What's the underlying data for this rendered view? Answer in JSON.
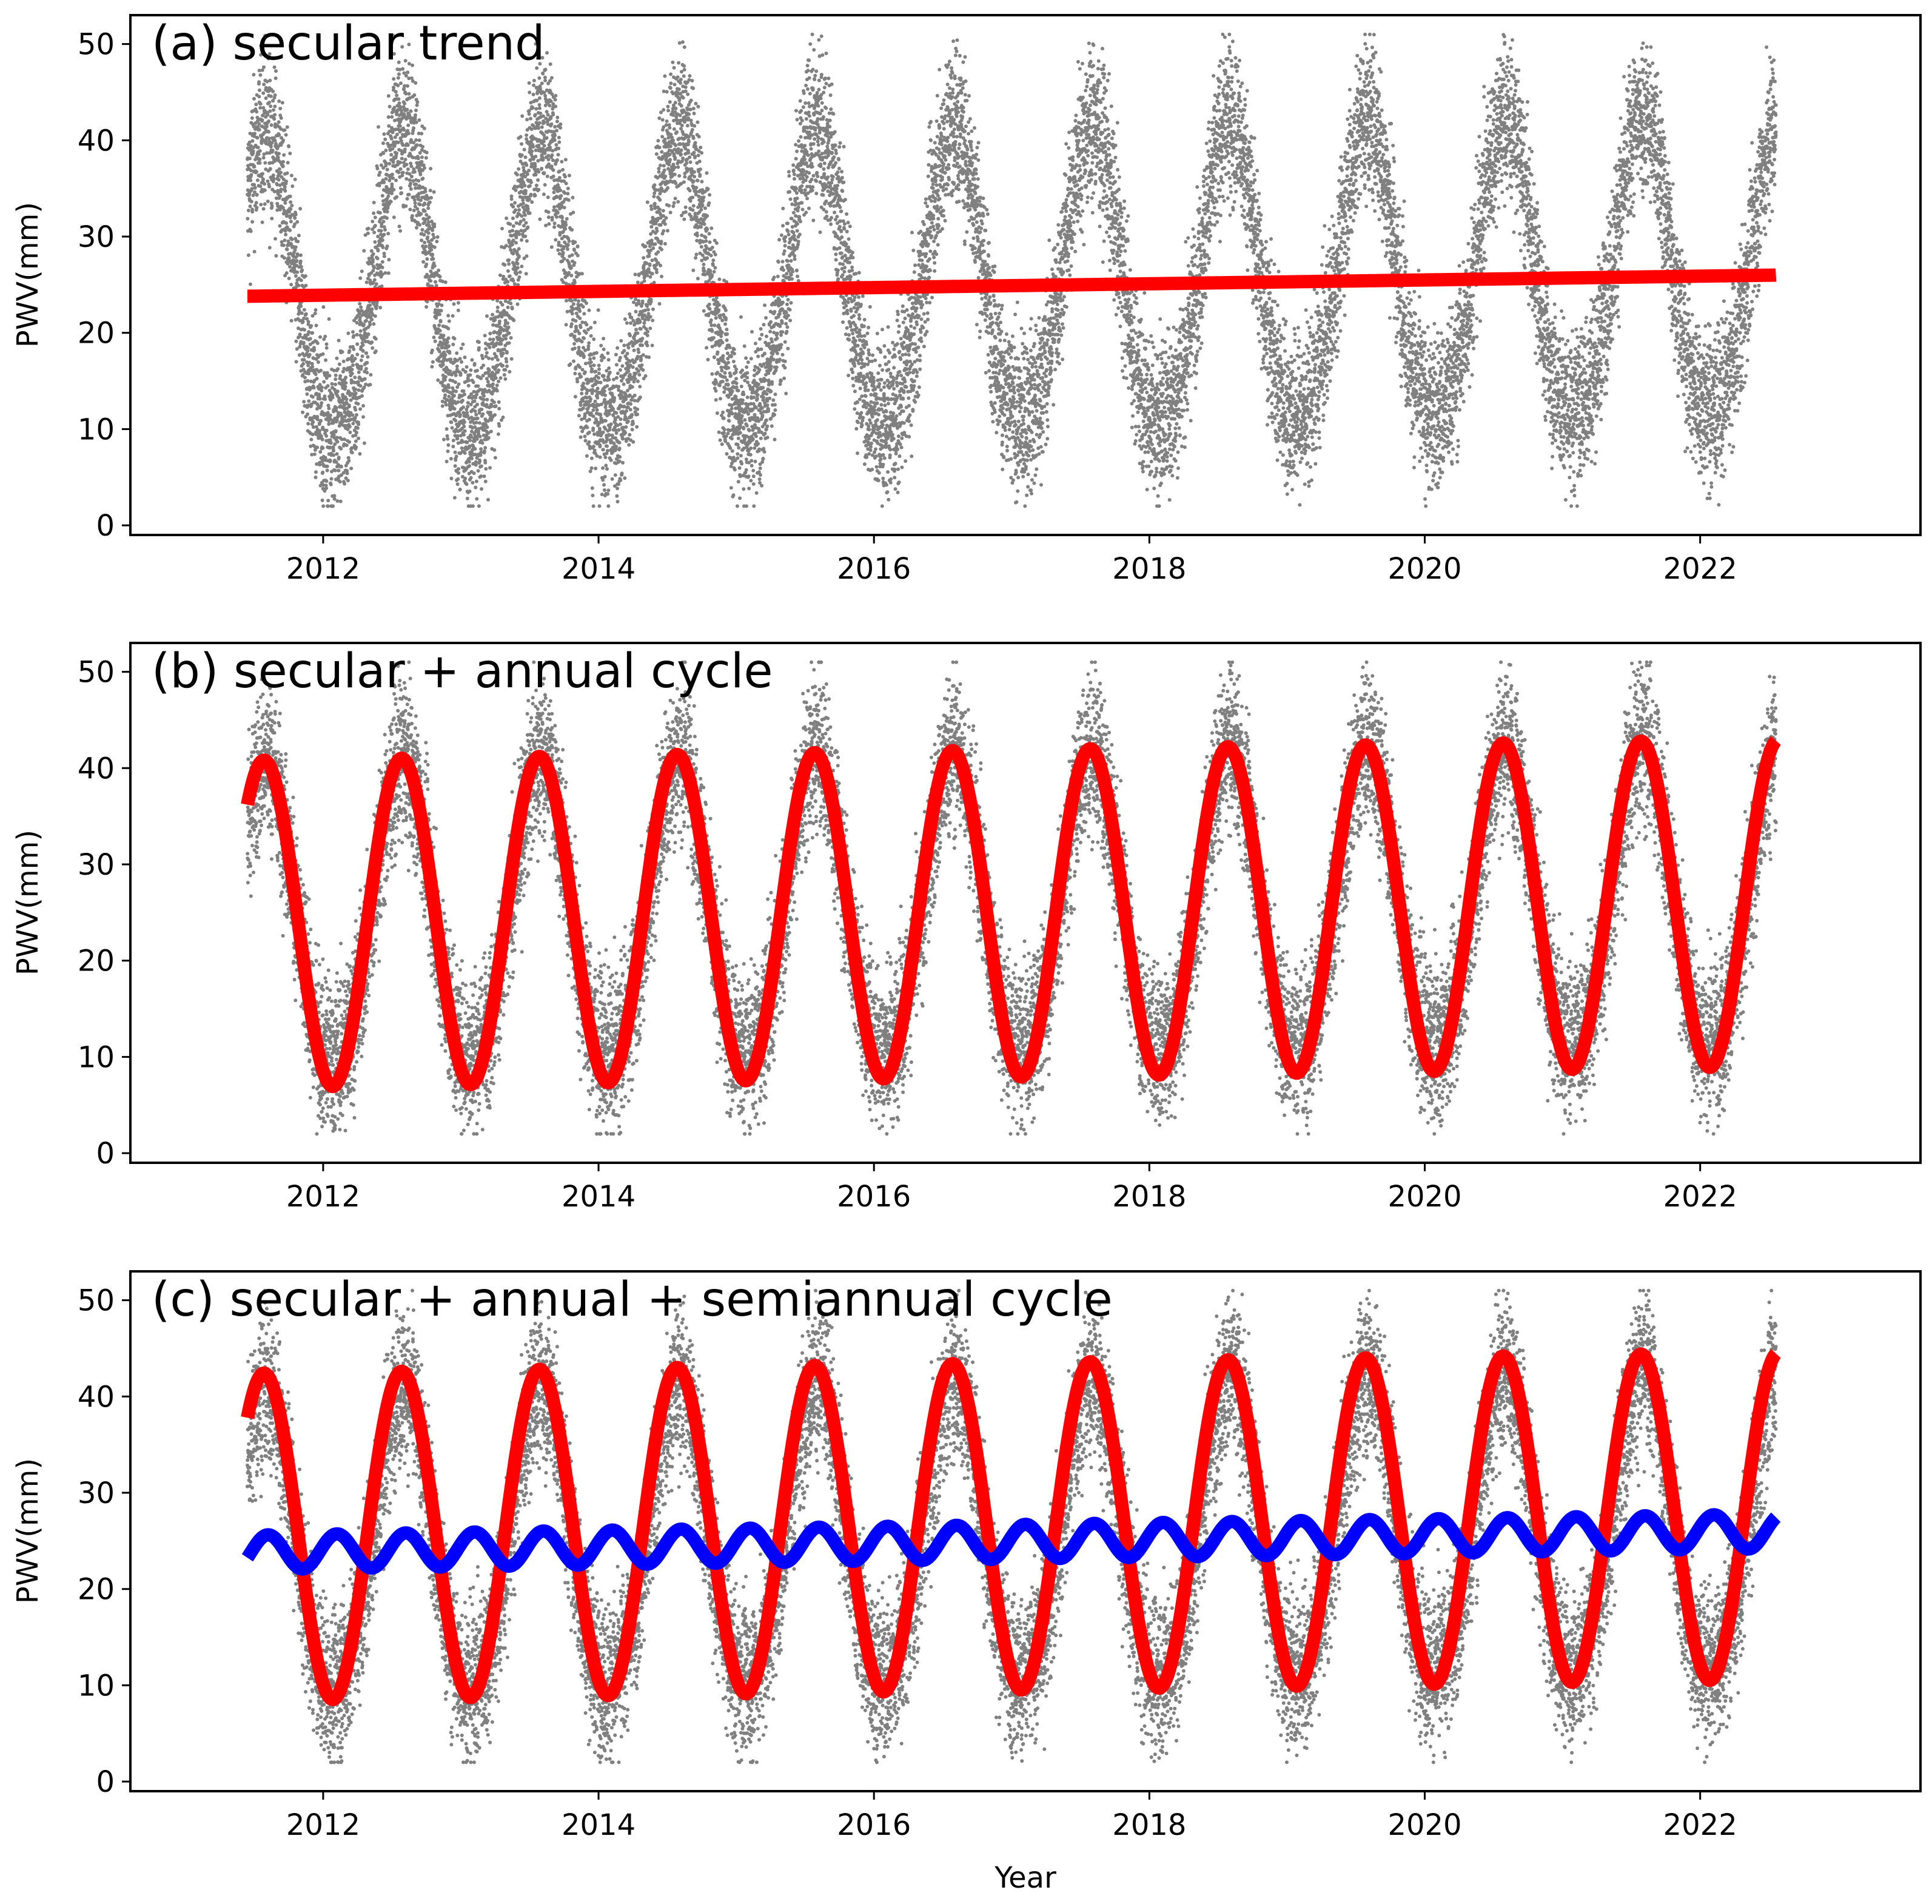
{
  "chart_data": [
    {
      "type": "scatter",
      "panel": "a",
      "title": "(a) secular trend",
      "xlabel": "",
      "ylabel": "PWV(mm)",
      "xlim": [
        2010.6,
        2023.6
      ],
      "ylim": [
        -1,
        53
      ],
      "xticks": [
        2012,
        2014,
        2016,
        2018,
        2020,
        2022
      ],
      "xtick_labels": [
        "2012",
        "2014",
        "2016",
        "2018",
        "2020",
        "2022"
      ],
      "yticks": [
        0,
        10,
        20,
        30,
        40,
        50
      ],
      "ytick_labels": [
        "0",
        "10",
        "20",
        "30",
        "40",
        "50"
      ],
      "observations": {
        "name": "PWV observations",
        "color": "#808080",
        "x_range": [
          2011.45,
          2022.55
        ],
        "mean_start": 23.8,
        "mean_end": 26.0,
        "annual_amplitude": 15.5,
        "peak_phase": 0.58,
        "spread": 7.5,
        "y_min": 2,
        "y_max": 51
      },
      "series": [
        {
          "name": "secular trend",
          "color": "#ff0000",
          "kind": "linear",
          "start": 2011.45,
          "end": 2022.55,
          "offset": 23.8,
          "slope": 0.198
        }
      ]
    },
    {
      "type": "scatter",
      "panel": "b",
      "title": "(b) secular + annual cycle",
      "xlabel": "",
      "ylabel": "PWV(mm)",
      "xlim": [
        2010.6,
        2023.6
      ],
      "ylim": [
        -1,
        53
      ],
      "xticks": [
        2012,
        2014,
        2016,
        2018,
        2020,
        2022
      ],
      "xtick_labels": [
        "2012",
        "2014",
        "2016",
        "2018",
        "2020",
        "2022"
      ],
      "yticks": [
        0,
        10,
        20,
        30,
        40,
        50
      ],
      "ytick_labels": [
        "0",
        "10",
        "20",
        "30",
        "40",
        "50"
      ],
      "observations": {
        "name": "PWV observations",
        "color": "#808080",
        "x_range": [
          2011.45,
          2022.55
        ],
        "mean_start": 23.8,
        "mean_end": 26.0,
        "annual_amplitude": 15.5,
        "peak_phase": 0.58,
        "spread": 7.5,
        "y_min": 2,
        "y_max": 51
      },
      "series": [
        {
          "name": "secular + annual cycle",
          "color": "#ff0000",
          "kind": "harmonic",
          "start": 2011.45,
          "end": 2022.55,
          "offset": 23.8,
          "slope": 0.198,
          "amplitude": 17,
          "period": 1.0,
          "peak_phase": 0.57
        }
      ]
    },
    {
      "type": "scatter",
      "panel": "c",
      "title": "(c) secular + annual + semiannual cycle",
      "xlabel": "Year",
      "ylabel": "PWV(mm)",
      "xlim": [
        2010.6,
        2023.6
      ],
      "ylim": [
        -1,
        53
      ],
      "xticks": [
        2012,
        2014,
        2016,
        2018,
        2020,
        2022
      ],
      "xtick_labels": [
        "2012",
        "2014",
        "2016",
        "2018",
        "2020",
        "2022"
      ],
      "yticks": [
        0,
        10,
        20,
        30,
        40,
        50
      ],
      "ytick_labels": [
        "0",
        "10",
        "20",
        "30",
        "40",
        "50"
      ],
      "observations": {
        "name": "PWV observations",
        "color": "#808080",
        "x_range": [
          2011.45,
          2022.55
        ],
        "mean_start": 23.8,
        "mean_end": 26.0,
        "annual_amplitude": 15.5,
        "peak_phase": 0.58,
        "spread": 7.5,
        "y_min": 2,
        "y_max": 51
      },
      "series": [
        {
          "name": "secular + annual cycle",
          "color": "#ff0000",
          "kind": "harmonic",
          "start": 2011.45,
          "end": 2022.55,
          "offset": 25.4,
          "slope": 0.198,
          "amplitude": 17,
          "period": 1.0,
          "peak_phase": 0.57
        },
        {
          "name": "semiannual cycle",
          "color": "#0000ff",
          "kind": "harmonic",
          "start": 2011.45,
          "end": 2022.55,
          "offset": 23.8,
          "slope": 0.198,
          "amplitude": 1.8,
          "period": 0.5,
          "peak_phase": 0.1
        }
      ]
    }
  ]
}
